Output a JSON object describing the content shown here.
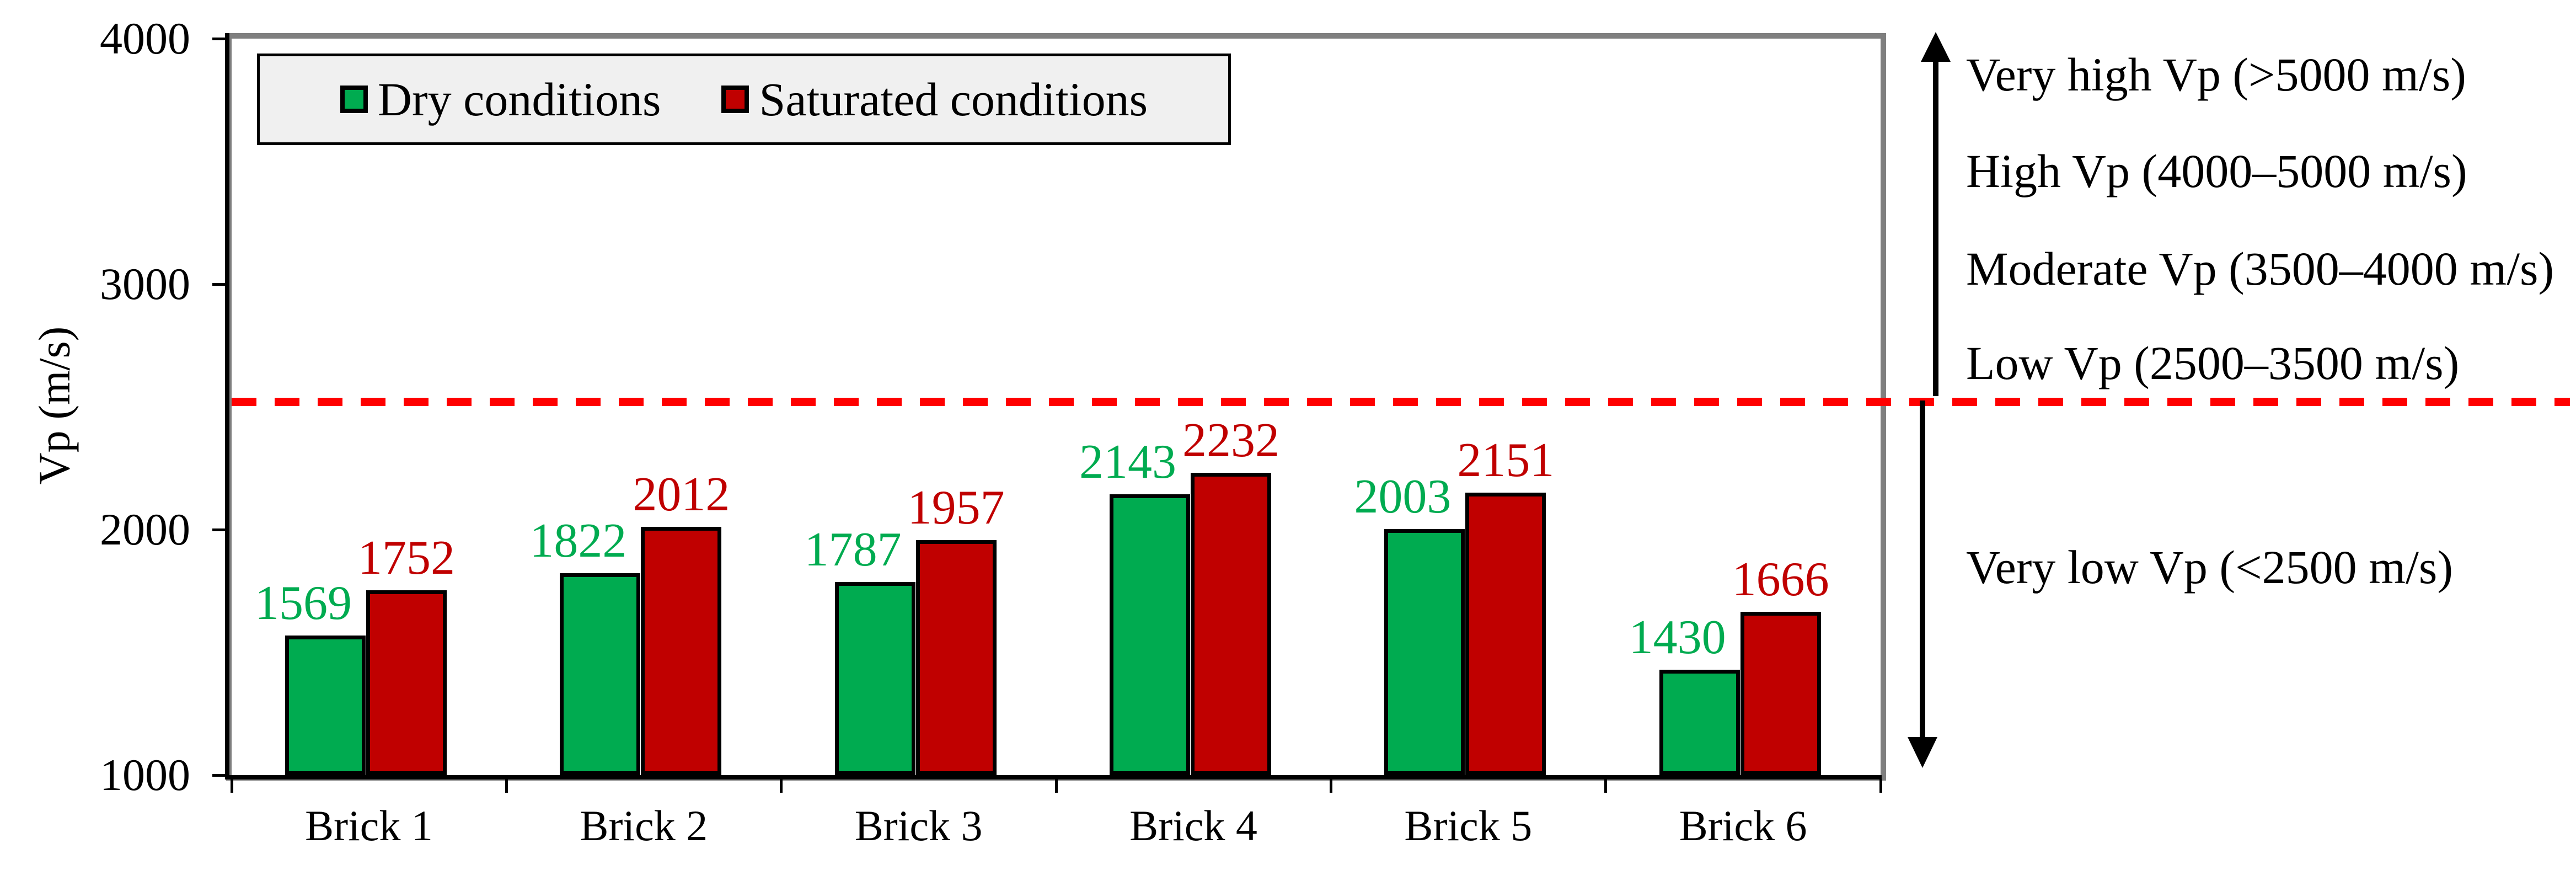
{
  "y_axis": {
    "title": "Vp (m/s)",
    "tick_labels": [
      "4000",
      "3000",
      "2000",
      "1000"
    ],
    "min": 1000,
    "max": 4000
  },
  "legend": {
    "items": [
      {
        "label": "Dry conditions",
        "color": "#00AB50"
      },
      {
        "label": "Saturated conditions",
        "color": "#C00000"
      }
    ]
  },
  "chart_data": {
    "type": "bar",
    "categories": [
      "Brick 1",
      "Brick 2",
      "Brick 3",
      "Brick 4",
      "Brick 5",
      "Brick 6"
    ],
    "series": [
      {
        "name": "Dry conditions",
        "color": "#00AB50",
        "values": [
          1569,
          1822,
          1787,
          2143,
          2003,
          1430
        ]
      },
      {
        "name": "Saturated conditions",
        "color": "#C00000",
        "values": [
          1752,
          2012,
          1957,
          2232,
          2151,
          1666
        ]
      }
    ],
    "ylabel": "Vp (m/s)",
    "ylim": [
      1000,
      4000
    ],
    "grid": false,
    "legend_position": "top-left",
    "threshold_line": {
      "value": 2500,
      "color": "#FF0000",
      "style": "dashed"
    }
  },
  "annotations": {
    "above_line": [
      "Very high Vp (>5000 m/s)",
      "High Vp (4000–5000 m/s)",
      "Moderate Vp (3500–4000 m/s)",
      "Low Vp (2500–3500 m/s)"
    ],
    "below_line": [
      "Very low Vp (<2500 m/s)"
    ]
  },
  "colors": {
    "dry": "#00AB50",
    "saturated": "#C00000",
    "threshold": "#FF0000",
    "frame": "#7f7f7f",
    "legend_fill": "#f0f0f0"
  }
}
